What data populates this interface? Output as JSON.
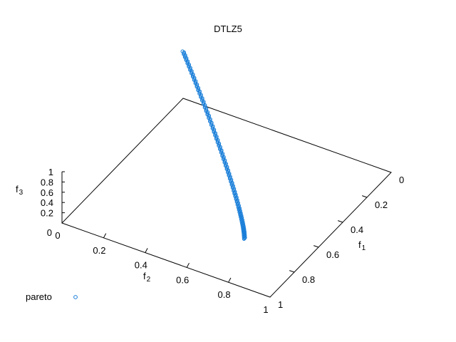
{
  "chart_data": {
    "type": "scatter3d",
    "title": "DTLZ5",
    "xlabel": "f",
    "xlabel_sub": "1",
    "ylabel": "f",
    "ylabel_sub": "2",
    "zlabel": "f",
    "zlabel_sub": "3",
    "xlim": [
      0,
      1
    ],
    "ylim": [
      0,
      1
    ],
    "zlim": [
      0,
      1
    ],
    "x_ticks": [
      "0",
      "0.2",
      "0.4",
      "0.6",
      "0.8",
      "1"
    ],
    "y_ticks": [
      "0",
      "0.2",
      "0.4",
      "0.6",
      "0.8",
      "1"
    ],
    "z_ticks": [
      "0",
      "0.2",
      "0.4",
      "0.6",
      "0.8",
      "1"
    ],
    "grid": false,
    "legend_position": "bottom-left",
    "series_color": "#1a7fd9",
    "marker": "open-circle",
    "series": [
      {
        "name": "pareto",
        "x": [
          0.707,
          0.702,
          0.694,
          0.68,
          0.662,
          0.641,
          0.615,
          0.587,
          0.555,
          0.521,
          0.483,
          0.444,
          0.403,
          0.36,
          0.316,
          0.271,
          0.225,
          0.179,
          0.133,
          0.087,
          0.041,
          0.0
        ],
        "y": [
          0.707,
          0.702,
          0.694,
          0.68,
          0.662,
          0.641,
          0.615,
          0.587,
          0.555,
          0.521,
          0.483,
          0.444,
          0.403,
          0.36,
          0.316,
          0.271,
          0.225,
          0.179,
          0.133,
          0.087,
          0.041,
          0.0
        ],
        "z": [
          0.0,
          0.095,
          0.165,
          0.233,
          0.297,
          0.358,
          0.417,
          0.472,
          0.524,
          0.574,
          0.62,
          0.663,
          0.703,
          0.74,
          0.773,
          0.803,
          0.829,
          0.853,
          0.873,
          0.89,
          0.904,
          0.915
        ]
      }
    ]
  }
}
